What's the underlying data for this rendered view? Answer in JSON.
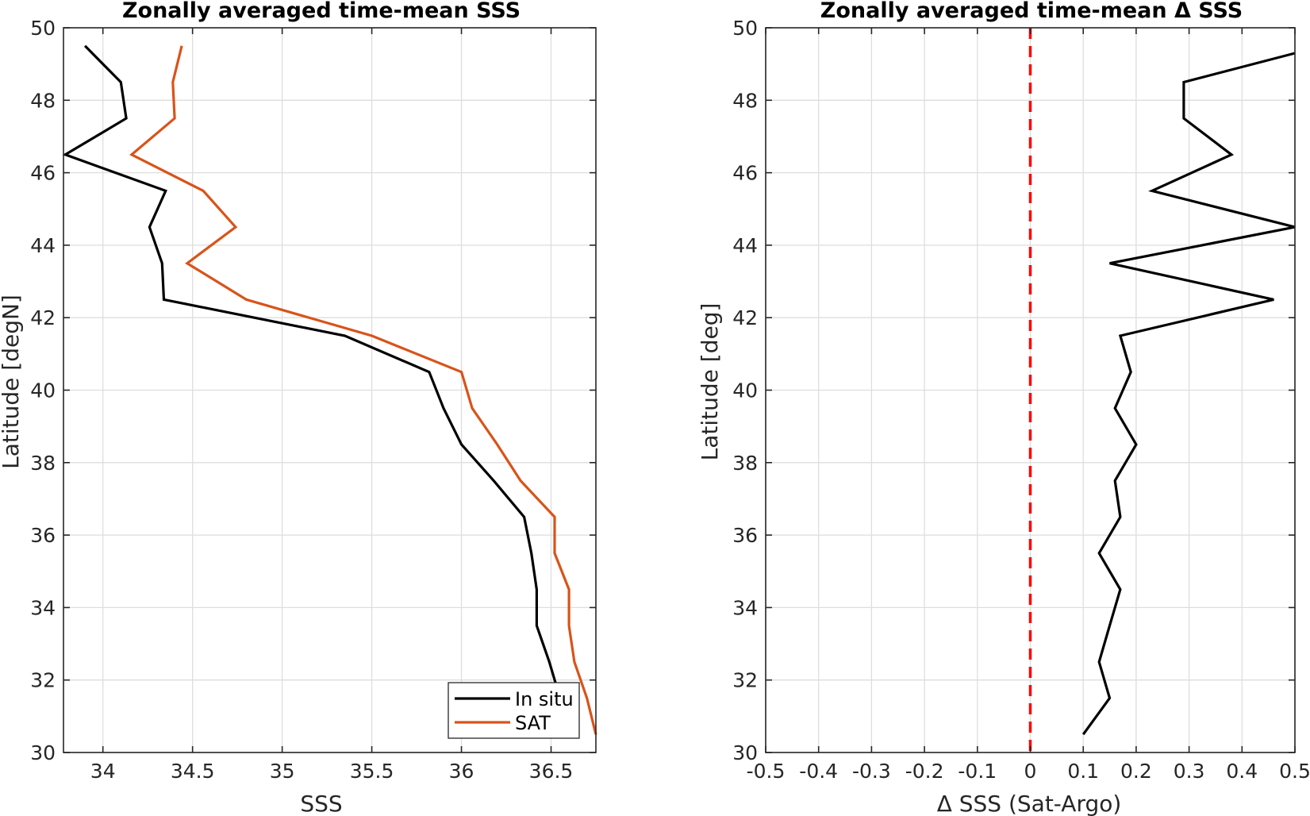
{
  "chart_data": [
    {
      "type": "line",
      "title": "Zonally averaged time-mean SSS",
      "xlabel": "SSS",
      "ylabel": "Latitude [degN]",
      "xlim": [
        33.78,
        36.75
      ],
      "ylim": [
        30,
        50
      ],
      "xticks": [
        "34",
        "34.5",
        "35",
        "35.5",
        "36",
        "36.5"
      ],
      "xtick_values": [
        34,
        34.5,
        35,
        35.5,
        36,
        36.5
      ],
      "yticks": [
        "30",
        "32",
        "34",
        "36",
        "38",
        "40",
        "42",
        "44",
        "46",
        "48",
        "50"
      ],
      "ytick_values": [
        30,
        32,
        34,
        36,
        38,
        40,
        42,
        44,
        46,
        48,
        50
      ],
      "grid": true,
      "legend": "bottom-right",
      "series": [
        {
          "name": "In situ",
          "color": "#000000",
          "points": [
            [
              33.9,
              49.5
            ],
            [
              34.1,
              48.5
            ],
            [
              34.13,
              47.5
            ],
            [
              33.79,
              46.5
            ],
            [
              34.35,
              45.5
            ],
            [
              34.26,
              44.5
            ],
            [
              34.33,
              43.5
            ],
            [
              34.34,
              42.5
            ],
            [
              35.35,
              41.5
            ],
            [
              35.82,
              40.5
            ],
            [
              35.9,
              39.5
            ],
            [
              36.0,
              38.5
            ],
            [
              36.18,
              37.5
            ],
            [
              36.35,
              36.5
            ],
            [
              36.39,
              35.5
            ],
            [
              36.42,
              34.5
            ],
            [
              36.42,
              33.5
            ],
            [
              36.49,
              32.5
            ],
            [
              36.55,
              31.5
            ]
          ]
        },
        {
          "name": "SAT",
          "color": "#d95319",
          "points": [
            [
              34.44,
              49.5
            ],
            [
              34.39,
              48.5
            ],
            [
              34.4,
              47.5
            ],
            [
              34.16,
              46.5
            ],
            [
              34.56,
              45.5
            ],
            [
              34.74,
              44.5
            ],
            [
              34.47,
              43.5
            ],
            [
              34.8,
              42.5
            ],
            [
              35.5,
              41.5
            ],
            [
              36.0,
              40.5
            ],
            [
              36.06,
              39.5
            ],
            [
              36.2,
              38.5
            ],
            [
              36.33,
              37.5
            ],
            [
              36.52,
              36.5
            ],
            [
              36.52,
              35.5
            ],
            [
              36.6,
              34.5
            ],
            [
              36.6,
              33.5
            ],
            [
              36.63,
              32.5
            ],
            [
              36.7,
              31.5
            ],
            [
              36.75,
              30.5
            ]
          ]
        }
      ]
    },
    {
      "type": "line",
      "title": "Zonally averaged time-mean Δ SSS",
      "xlabel": "Δ SSS (Sat-Argo)",
      "ylabel": "Latitude [deg]",
      "xlim": [
        -0.5,
        0.5
      ],
      "ylim": [
        30,
        50
      ],
      "xticks": [
        "-0.5",
        "-0.4",
        "-0.3",
        "-0.2",
        "-0.1",
        "0",
        "0.1",
        "0.2",
        "0.3",
        "0.4",
        "0.5"
      ],
      "xtick_values": [
        -0.5,
        -0.4,
        -0.3,
        -0.2,
        -0.1,
        0,
        0.1,
        0.2,
        0.3,
        0.4,
        0.5
      ],
      "yticks": [
        "30",
        "32",
        "34",
        "36",
        "38",
        "40",
        "42",
        "44",
        "46",
        "48",
        "50"
      ],
      "ytick_values": [
        30,
        32,
        34,
        36,
        38,
        40,
        42,
        44,
        46,
        48,
        50
      ],
      "grid": true,
      "reference_line": {
        "x": 0,
        "color": "#ff0000",
        "style": "dashed"
      },
      "series": [
        {
          "color": "#000000",
          "points": [
            [
              0.5,
              49.3
            ],
            [
              0.29,
              48.5
            ],
            [
              0.29,
              47.5
            ],
            [
              0.38,
              46.5
            ],
            [
              0.23,
              45.5
            ],
            [
              0.5,
              44.5
            ],
            [
              0.15,
              43.5
            ],
            [
              0.46,
              42.5
            ],
            [
              0.17,
              41.5
            ],
            [
              0.19,
              40.5
            ],
            [
              0.16,
              39.5
            ],
            [
              0.2,
              38.5
            ],
            [
              0.16,
              37.5
            ],
            [
              0.17,
              36.5
            ],
            [
              0.13,
              35.5
            ],
            [
              0.17,
              34.5
            ],
            [
              0.15,
              33.5
            ],
            [
              0.13,
              32.5
            ],
            [
              0.15,
              31.5
            ],
            [
              0.1,
              30.5
            ]
          ]
        }
      ]
    }
  ]
}
